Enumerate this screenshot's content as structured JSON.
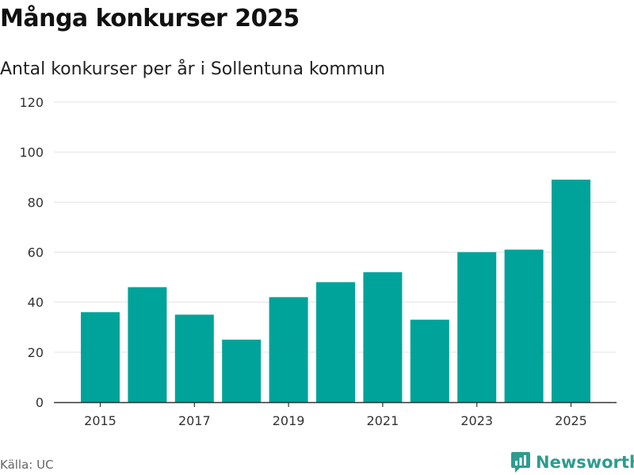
{
  "title": "Många konkurser 2025",
  "subtitle": "Antal konkurser per år i Sollentuna kommun",
  "source": "Källa: UC",
  "brand": {
    "name": "Newsworthy",
    "icon": "newsworthy-logo-icon"
  },
  "colors": {
    "bar": "#00a39a",
    "grid": "#e3e3e3",
    "axis": "#333333",
    "text": "#333333",
    "brand": "#2e9c8f"
  },
  "chart_data": {
    "type": "bar",
    "title": "Många konkurser 2025",
    "subtitle": "Antal konkurser per år i Sollentuna kommun",
    "xlabel": "",
    "ylabel": "",
    "categories": [
      "2015",
      "2016",
      "2017",
      "2018",
      "2019",
      "2020",
      "2021",
      "2022",
      "2023",
      "2024",
      "2025"
    ],
    "values": [
      36,
      46,
      35,
      25,
      42,
      48,
      52,
      33,
      60,
      61,
      89
    ],
    "ylim": [
      0,
      120
    ],
    "yticks": [
      0,
      20,
      40,
      60,
      80,
      100,
      120
    ],
    "xtick_labels": [
      "2015",
      "2017",
      "2019",
      "2021",
      "2023",
      "2025"
    ],
    "grid": true,
    "legend": "none"
  }
}
